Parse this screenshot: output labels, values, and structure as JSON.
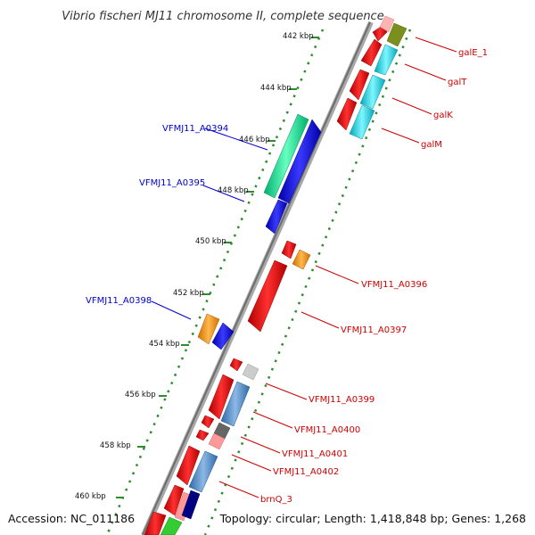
{
  "title": "Vibrio fischeri MJ11 chromosome II, complete sequence",
  "footer": {
    "accession": "Accession: NC_011186",
    "topology": "Topology: circular; Length: 1,418,848 bp; Genes: 1,268"
  },
  "colors": {
    "backbone": "#808080",
    "ticks": "#2e8b2e",
    "label_forward": "#cc0000",
    "label_reverse": "#0000cc"
  },
  "ticks": [
    "442 kbp",
    "444 kbp",
    "446 kbp",
    "448 kbp",
    "450 kbp",
    "452 kbp",
    "454 kbp",
    "456 kbp",
    "458 kbp",
    "460 kbp"
  ],
  "genes": [
    {
      "name": "galE_1",
      "strand": "forward",
      "color": "#ffb3b3"
    },
    {
      "name": "galT",
      "strand": "forward",
      "color": "#00e5ff"
    },
    {
      "name": "galK",
      "strand": "forward",
      "color": "#00c8d6"
    },
    {
      "name": "galM",
      "strand": "forward",
      "color": "#00b8c8"
    },
    {
      "name": "VFMJ11_A0394",
      "strand": "reverse",
      "color": "#00e68a"
    },
    {
      "name": "VFMJ11_A0395",
      "strand": "reverse",
      "color": "#0000ee"
    },
    {
      "name": "VFMJ11_A0396",
      "strand": "forward",
      "color": "#ff9900"
    },
    {
      "name": "VFMJ11_A0397",
      "strand": "forward",
      "color": "#ee0000"
    },
    {
      "name": "VFMJ11_A0398",
      "strand": "reverse",
      "color": "#ff9900"
    },
    {
      "name": "VFMJ11_A0399",
      "strand": "forward",
      "color": "#cccccc"
    },
    {
      "name": "VFMJ11_A0400",
      "strand": "forward",
      "color": "#4f88c6"
    },
    {
      "name": "VFMJ11_A0401",
      "strand": "forward",
      "color": "#666666"
    },
    {
      "name": "VFMJ11_A0402",
      "strand": "forward",
      "color": "#ff9999"
    },
    {
      "name": "brnQ_3",
      "strand": "forward",
      "color": "#4f88c6"
    }
  ]
}
